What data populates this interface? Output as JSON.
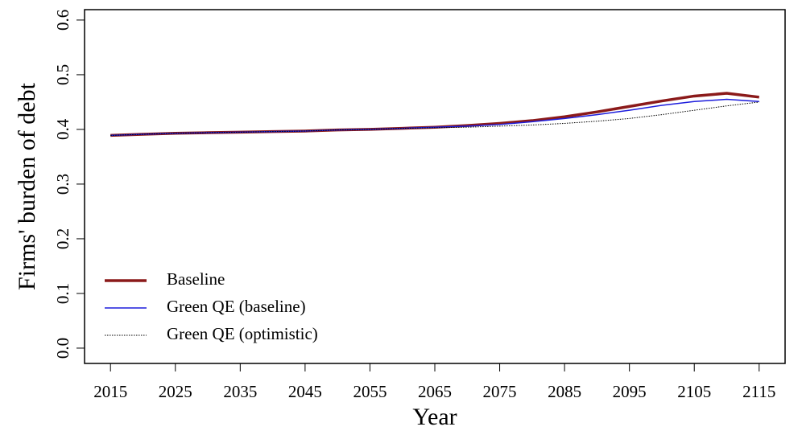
{
  "chart_data": {
    "type": "line",
    "x_label": "Year",
    "y_label": "Firms' burden of debt",
    "x": [
      2015,
      2020,
      2025,
      2030,
      2035,
      2040,
      2045,
      2050,
      2055,
      2060,
      2065,
      2070,
      2075,
      2080,
      2085,
      2090,
      2095,
      2100,
      2105,
      2110,
      2115
    ],
    "series": [
      {
        "name": "Baseline",
        "color": "#8b1a1a",
        "width": 3.5,
        "dash": false,
        "values": [
          0.389,
          0.391,
          0.393,
          0.394,
          0.395,
          0.396,
          0.397,
          0.399,
          0.4,
          0.402,
          0.404,
          0.407,
          0.411,
          0.416,
          0.423,
          0.432,
          0.442,
          0.452,
          0.461,
          0.466,
          0.459
        ]
      },
      {
        "name": "Green QE (baseline)",
        "color": "#1c1cdc",
        "width": 1.5,
        "dash": false,
        "values": [
          0.389,
          0.391,
          0.393,
          0.394,
          0.395,
          0.396,
          0.397,
          0.399,
          0.4,
          0.402,
          0.404,
          0.406,
          0.409,
          0.414,
          0.42,
          0.427,
          0.435,
          0.444,
          0.451,
          0.455,
          0.451
        ]
      },
      {
        "name": "Green QE (optimistic)",
        "color": "#000000",
        "width": 1,
        "dash": true,
        "values": [
          0.389,
          0.391,
          0.393,
          0.394,
          0.395,
          0.396,
          0.397,
          0.399,
          0.4,
          0.402,
          0.403,
          0.404,
          0.406,
          0.408,
          0.411,
          0.415,
          0.42,
          0.427,
          0.435,
          0.443,
          0.45
        ]
      }
    ],
    "xlim": [
      2011,
      2119
    ],
    "ylim": [
      -0.028,
      0.619
    ],
    "xticks": [
      2015,
      2025,
      2035,
      2045,
      2055,
      2065,
      2075,
      2085,
      2095,
      2105,
      2115
    ],
    "yticks": [
      {
        "value": 0,
        "label": "0.0"
      },
      0.1,
      0.2,
      0.3,
      0.4,
      0.5,
      0.6
    ],
    "legend": "bottom-left",
    "grid": false
  }
}
